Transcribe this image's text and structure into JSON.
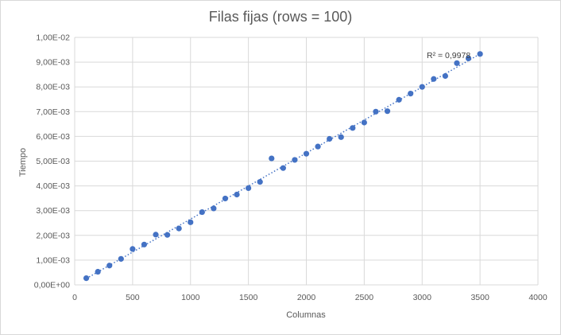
{
  "chart_data": {
    "type": "scatter",
    "title": "Filas fijas (rows = 100)",
    "xlabel": "Columnas",
    "ylabel": "Tiempo",
    "xlim": [
      0,
      4000
    ],
    "ylim": [
      0,
      0.01
    ],
    "x_ticks": [
      0,
      500,
      1000,
      1500,
      2000,
      2500,
      3000,
      3500,
      4000
    ],
    "x_tick_labels": [
      "0",
      "500",
      "1000",
      "1500",
      "2000",
      "2500",
      "3000",
      "3500",
      "4000"
    ],
    "y_ticks": [
      0,
      0.001,
      0.002,
      0.003,
      0.004,
      0.005,
      0.006,
      0.007,
      0.008,
      0.009,
      0.01
    ],
    "y_tick_labels": [
      "0,00E+00",
      "1,00E-03",
      "2,00E-03",
      "3,00E-03",
      "4,00E-03",
      "5,00E-03",
      "6,00E-03",
      "7,00E-03",
      "8,00E-03",
      "9,00E-03",
      "1,00E-02"
    ],
    "grid": "both",
    "legend": "none",
    "series": [
      {
        "color": "#4472c4",
        "points": [
          [
            100,
            0.00027
          ],
          [
            200,
            0.00053
          ],
          [
            300,
            0.00078
          ],
          [
            400,
            0.00105
          ],
          [
            500,
            0.00145
          ],
          [
            600,
            0.00163
          ],
          [
            700,
            0.00203
          ],
          [
            800,
            0.00202
          ],
          [
            900,
            0.00228
          ],
          [
            1000,
            0.00253
          ],
          [
            1100,
            0.00294
          ],
          [
            1200,
            0.00309
          ],
          [
            1300,
            0.00349
          ],
          [
            1400,
            0.00365
          ],
          [
            1500,
            0.00391
          ],
          [
            1600,
            0.00416
          ],
          [
            1700,
            0.00511
          ],
          [
            1800,
            0.00472
          ],
          [
            1900,
            0.00505
          ],
          [
            2000,
            0.0053
          ],
          [
            2100,
            0.00559
          ],
          [
            2200,
            0.0059
          ],
          [
            2300,
            0.00597
          ],
          [
            2400,
            0.00634
          ],
          [
            2500,
            0.00656
          ],
          [
            2600,
            0.007
          ],
          [
            2700,
            0.00702
          ],
          [
            2800,
            0.00748
          ],
          [
            2900,
            0.00773
          ],
          [
            3000,
            0.008
          ],
          [
            3100,
            0.00832
          ],
          [
            3200,
            0.00844
          ],
          [
            3300,
            0.00896
          ],
          [
            3400,
            0.00915
          ],
          [
            3500,
            0.00933
          ]
        ]
      }
    ],
    "trendline": {
      "type": "linear",
      "style": "dotted",
      "color": "#4472c4",
      "r2_label": "R² = 0,9978"
    }
  }
}
